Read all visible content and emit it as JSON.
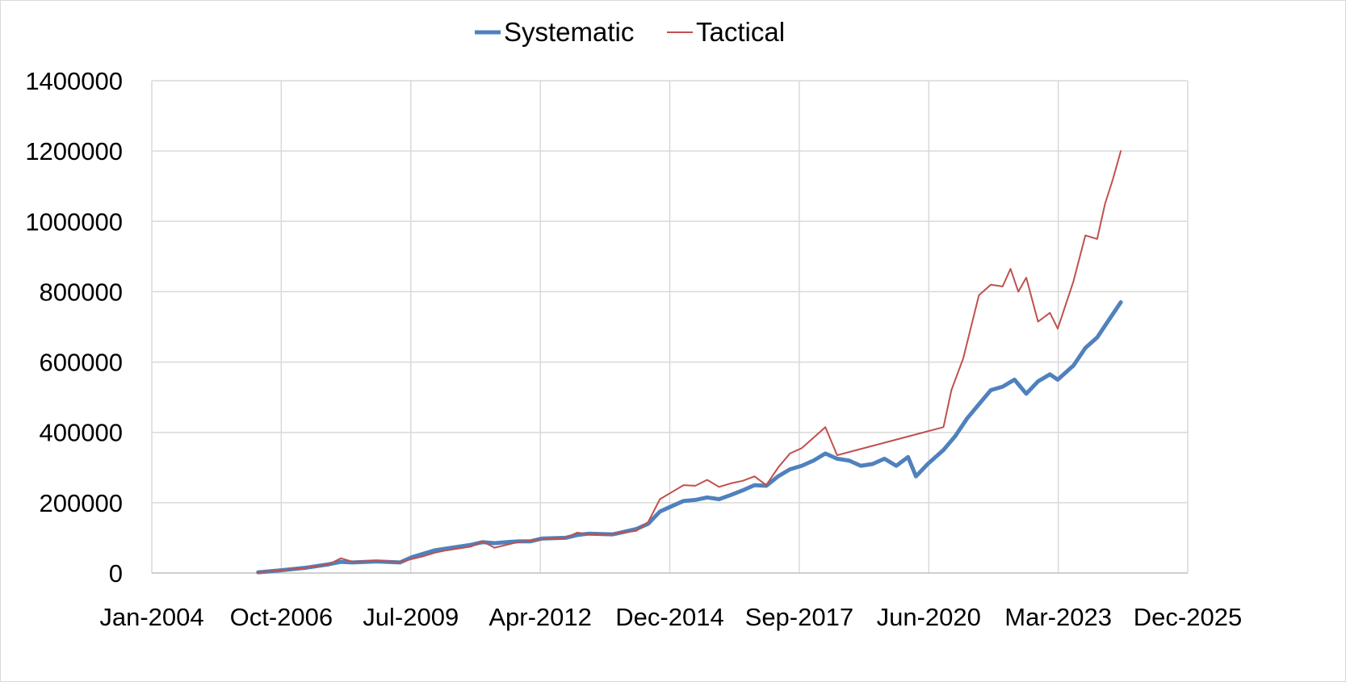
{
  "chart_data": {
    "type": "line",
    "title": "",
    "xlabel": "",
    "ylabel": "",
    "legend": {
      "position": "top",
      "entries": [
        {
          "name": "Systematic",
          "color": "#4F81BD"
        },
        {
          "name": "Tactical",
          "color": "#C0504D"
        }
      ]
    },
    "grid": true,
    "ylim": [
      0,
      1400000
    ],
    "yticks": [
      "0",
      "200000",
      "400000",
      "600000",
      "800000",
      "1000000",
      "1200000",
      "1400000"
    ],
    "xticks": [
      "Jan-2004",
      "Oct-2006",
      "Jul-2009",
      "Apr-2012",
      "Dec-2014",
      "Sep-2017",
      "Jun-2020",
      "Mar-2023",
      "Dec-2025"
    ],
    "xlim": [
      "Jan-2004",
      "Dec-2025"
    ],
    "series": [
      {
        "name": "Systematic",
        "color": "#4F81BD",
        "line_width": 5,
        "x": [
          "2006-04",
          "2006-10",
          "2007-04",
          "2007-10",
          "2008-01",
          "2008-04",
          "2008-10",
          "2009-04",
          "2009-07",
          "2009-10",
          "2010-01",
          "2010-04",
          "2010-10",
          "2011-01",
          "2011-04",
          "2011-07",
          "2011-10",
          "2012-01",
          "2012-04",
          "2012-10",
          "2013-01",
          "2013-04",
          "2013-10",
          "2014-04",
          "2014-07",
          "2014-10",
          "2015-01",
          "2015-04",
          "2015-07",
          "2015-10",
          "2016-01",
          "2016-04",
          "2016-07",
          "2016-10",
          "2017-01",
          "2017-04",
          "2017-07",
          "2017-10",
          "2018-01",
          "2018-04",
          "2018-07",
          "2018-10",
          "2019-01",
          "2019-04",
          "2019-07",
          "2019-10",
          "2020-01",
          "2020-03",
          "2020-06",
          "2020-10",
          "2021-01",
          "2021-04",
          "2021-07",
          "2021-10",
          "2022-01",
          "2022-04",
          "2022-07",
          "2022-10",
          "2023-01",
          "2023-03",
          "2023-07",
          "2023-10",
          "2024-01",
          "2024-04",
          "2024-07"
        ],
        "values": [
          2000,
          8000,
          15000,
          25000,
          32000,
          30000,
          33000,
          30000,
          45000,
          55000,
          65000,
          70000,
          80000,
          88000,
          85000,
          88000,
          90000,
          90000,
          98000,
          100000,
          108000,
          112000,
          110000,
          125000,
          140000,
          175000,
          190000,
          205000,
          208000,
          215000,
          210000,
          222000,
          235000,
          250000,
          248000,
          275000,
          295000,
          305000,
          320000,
          340000,
          325000,
          320000,
          305000,
          310000,
          325000,
          305000,
          330000,
          275000,
          310000,
          350000,
          390000,
          440000,
          480000,
          520000,
          530000,
          550000,
          510000,
          545000,
          565000,
          550000,
          590000,
          640000,
          670000,
          720000,
          770000
        ]
      },
      {
        "name": "Tactical",
        "color": "#C0504D",
        "line_width": 2,
        "x": [
          "2006-04",
          "2006-10",
          "2007-04",
          "2007-10",
          "2008-01",
          "2008-04",
          "2008-10",
          "2009-04",
          "2009-07",
          "2009-10",
          "2010-01",
          "2010-04",
          "2010-10",
          "2011-01",
          "2011-04",
          "2011-07",
          "2011-10",
          "2012-01",
          "2012-04",
          "2012-10",
          "2013-01",
          "2013-04",
          "2013-10",
          "2014-04",
          "2014-07",
          "2014-10",
          "2015-01",
          "2015-04",
          "2015-07",
          "2015-10",
          "2016-01",
          "2016-04",
          "2016-07",
          "2016-10",
          "2017-01",
          "2017-04",
          "2017-07",
          "2017-10",
          "2018-01",
          "2018-04",
          "2018-07",
          "2020-10",
          "2020-12",
          "2021-03",
          "2021-07",
          "2021-10",
          "2022-01",
          "2022-03",
          "2022-05",
          "2022-07",
          "2022-10",
          "2023-01",
          "2023-03",
          "2023-07",
          "2023-10",
          "2024-01",
          "2024-03",
          "2024-05",
          "2024-07"
        ],
        "values": [
          2000,
          8000,
          15000,
          25000,
          42000,
          32000,
          35000,
          32000,
          40000,
          48000,
          58000,
          65000,
          75000,
          90000,
          72000,
          80000,
          88000,
          92000,
          96000,
          100000,
          115000,
          110000,
          112000,
          120000,
          145000,
          210000,
          230000,
          250000,
          248000,
          265000,
          245000,
          255000,
          262000,
          275000,
          250000,
          300000,
          340000,
          355000,
          385000,
          415000,
          335000,
          415000,
          520000,
          610000,
          790000,
          820000,
          815000,
          865000,
          800000,
          840000,
          715000,
          740000,
          695000,
          830000,
          960000,
          950000,
          1050000,
          1120000,
          1200000
        ]
      }
    ]
  }
}
